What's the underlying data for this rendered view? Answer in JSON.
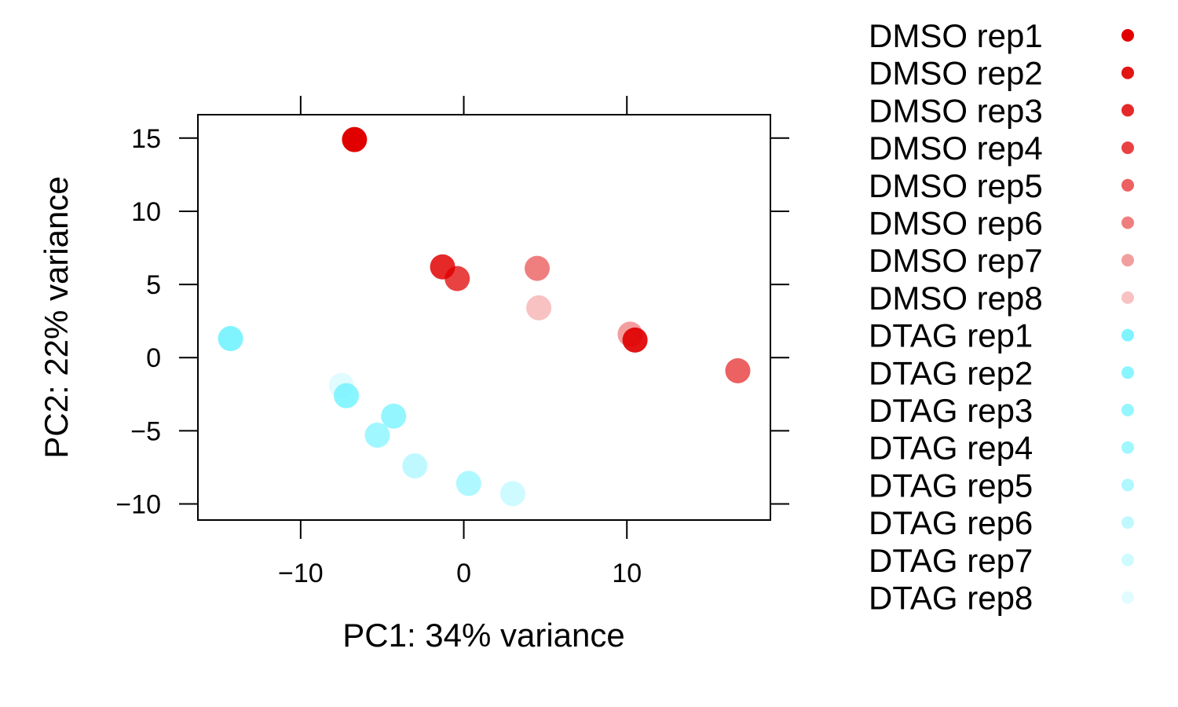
{
  "chart_data": {
    "type": "scatter",
    "title": "",
    "xlabel": "PC1: 34% variance",
    "ylabel": "PC2: 22% variance",
    "xlim": [
      -16.3,
      18.8
    ],
    "ylim": [
      -11.1,
      16.6
    ],
    "x_ticks": [
      -10,
      0,
      10
    ],
    "y_ticks": [
      -10,
      -5,
      0,
      5,
      10,
      15
    ],
    "x_tick_labels": [
      "−10",
      "0",
      "10"
    ],
    "y_tick_labels": [
      "−10",
      "−5",
      "0",
      "5",
      "10",
      "15"
    ],
    "grid": false,
    "legend_position": "right",
    "series": [
      {
        "name": "DMSO rep1",
        "color": "#e00000",
        "opacity": 1.0,
        "points": [
          {
            "x": -6.7,
            "y": 14.9
          }
        ]
      },
      {
        "name": "DMSO rep2",
        "color": "#e00000",
        "opacity": 0.92,
        "points": [
          {
            "x": 10.5,
            "y": 1.2
          }
        ]
      },
      {
        "name": "DMSO rep3",
        "color": "#e00000",
        "opacity": 0.84,
        "points": [
          {
            "x": -1.3,
            "y": 6.2
          }
        ]
      },
      {
        "name": "DMSO rep4",
        "color": "#e00000",
        "opacity": 0.74,
        "points": [
          {
            "x": -0.4,
            "y": 5.4
          }
        ]
      },
      {
        "name": "DMSO rep5",
        "color": "#e00000",
        "opacity": 0.62,
        "points": [
          {
            "x": 16.8,
            "y": -0.9
          }
        ]
      },
      {
        "name": "DMSO rep6",
        "color": "#e00000",
        "opacity": 0.5,
        "points": [
          {
            "x": 4.5,
            "y": 6.1
          }
        ]
      },
      {
        "name": "DMSO rep7",
        "color": "#e00000",
        "opacity": 0.38,
        "points": [
          {
            "x": 10.2,
            "y": 1.6
          }
        ]
      },
      {
        "name": "DMSO rep8",
        "color": "#e00000",
        "opacity": 0.24,
        "points": [
          {
            "x": 4.6,
            "y": 3.4
          }
        ]
      },
      {
        "name": "DTAG rep1",
        "color": "#7ff4ff",
        "opacity": 1.0,
        "points": [
          {
            "x": -14.3,
            "y": 1.3
          }
        ]
      },
      {
        "name": "DTAG rep2",
        "color": "#7ff4ff",
        "opacity": 0.92,
        "points": [
          {
            "x": -7.2,
            "y": -2.6
          }
        ]
      },
      {
        "name": "DTAG rep3",
        "color": "#7ff4ff",
        "opacity": 0.84,
        "points": [
          {
            "x": -4.3,
            "y": -4.0
          }
        ]
      },
      {
        "name": "DTAG rep4",
        "color": "#7ff4ff",
        "opacity": 0.74,
        "points": [
          {
            "x": -5.3,
            "y": -5.3
          }
        ]
      },
      {
        "name": "DTAG rep5",
        "color": "#7ff4ff",
        "opacity": 0.62,
        "points": [
          {
            "x": 0.3,
            "y": -8.6
          }
        ]
      },
      {
        "name": "DTAG rep6",
        "color": "#7ff4ff",
        "opacity": 0.5,
        "points": [
          {
            "x": -3.0,
            "y": -7.4
          }
        ]
      },
      {
        "name": "DTAG rep7",
        "color": "#7ff4ff",
        "opacity": 0.38,
        "points": [
          {
            "x": 3.0,
            "y": -9.3
          }
        ]
      },
      {
        "name": "DTAG rep8",
        "color": "#7ff4ff",
        "opacity": 0.24,
        "points": [
          {
            "x": -7.5,
            "y": -1.9
          }
        ]
      }
    ]
  }
}
